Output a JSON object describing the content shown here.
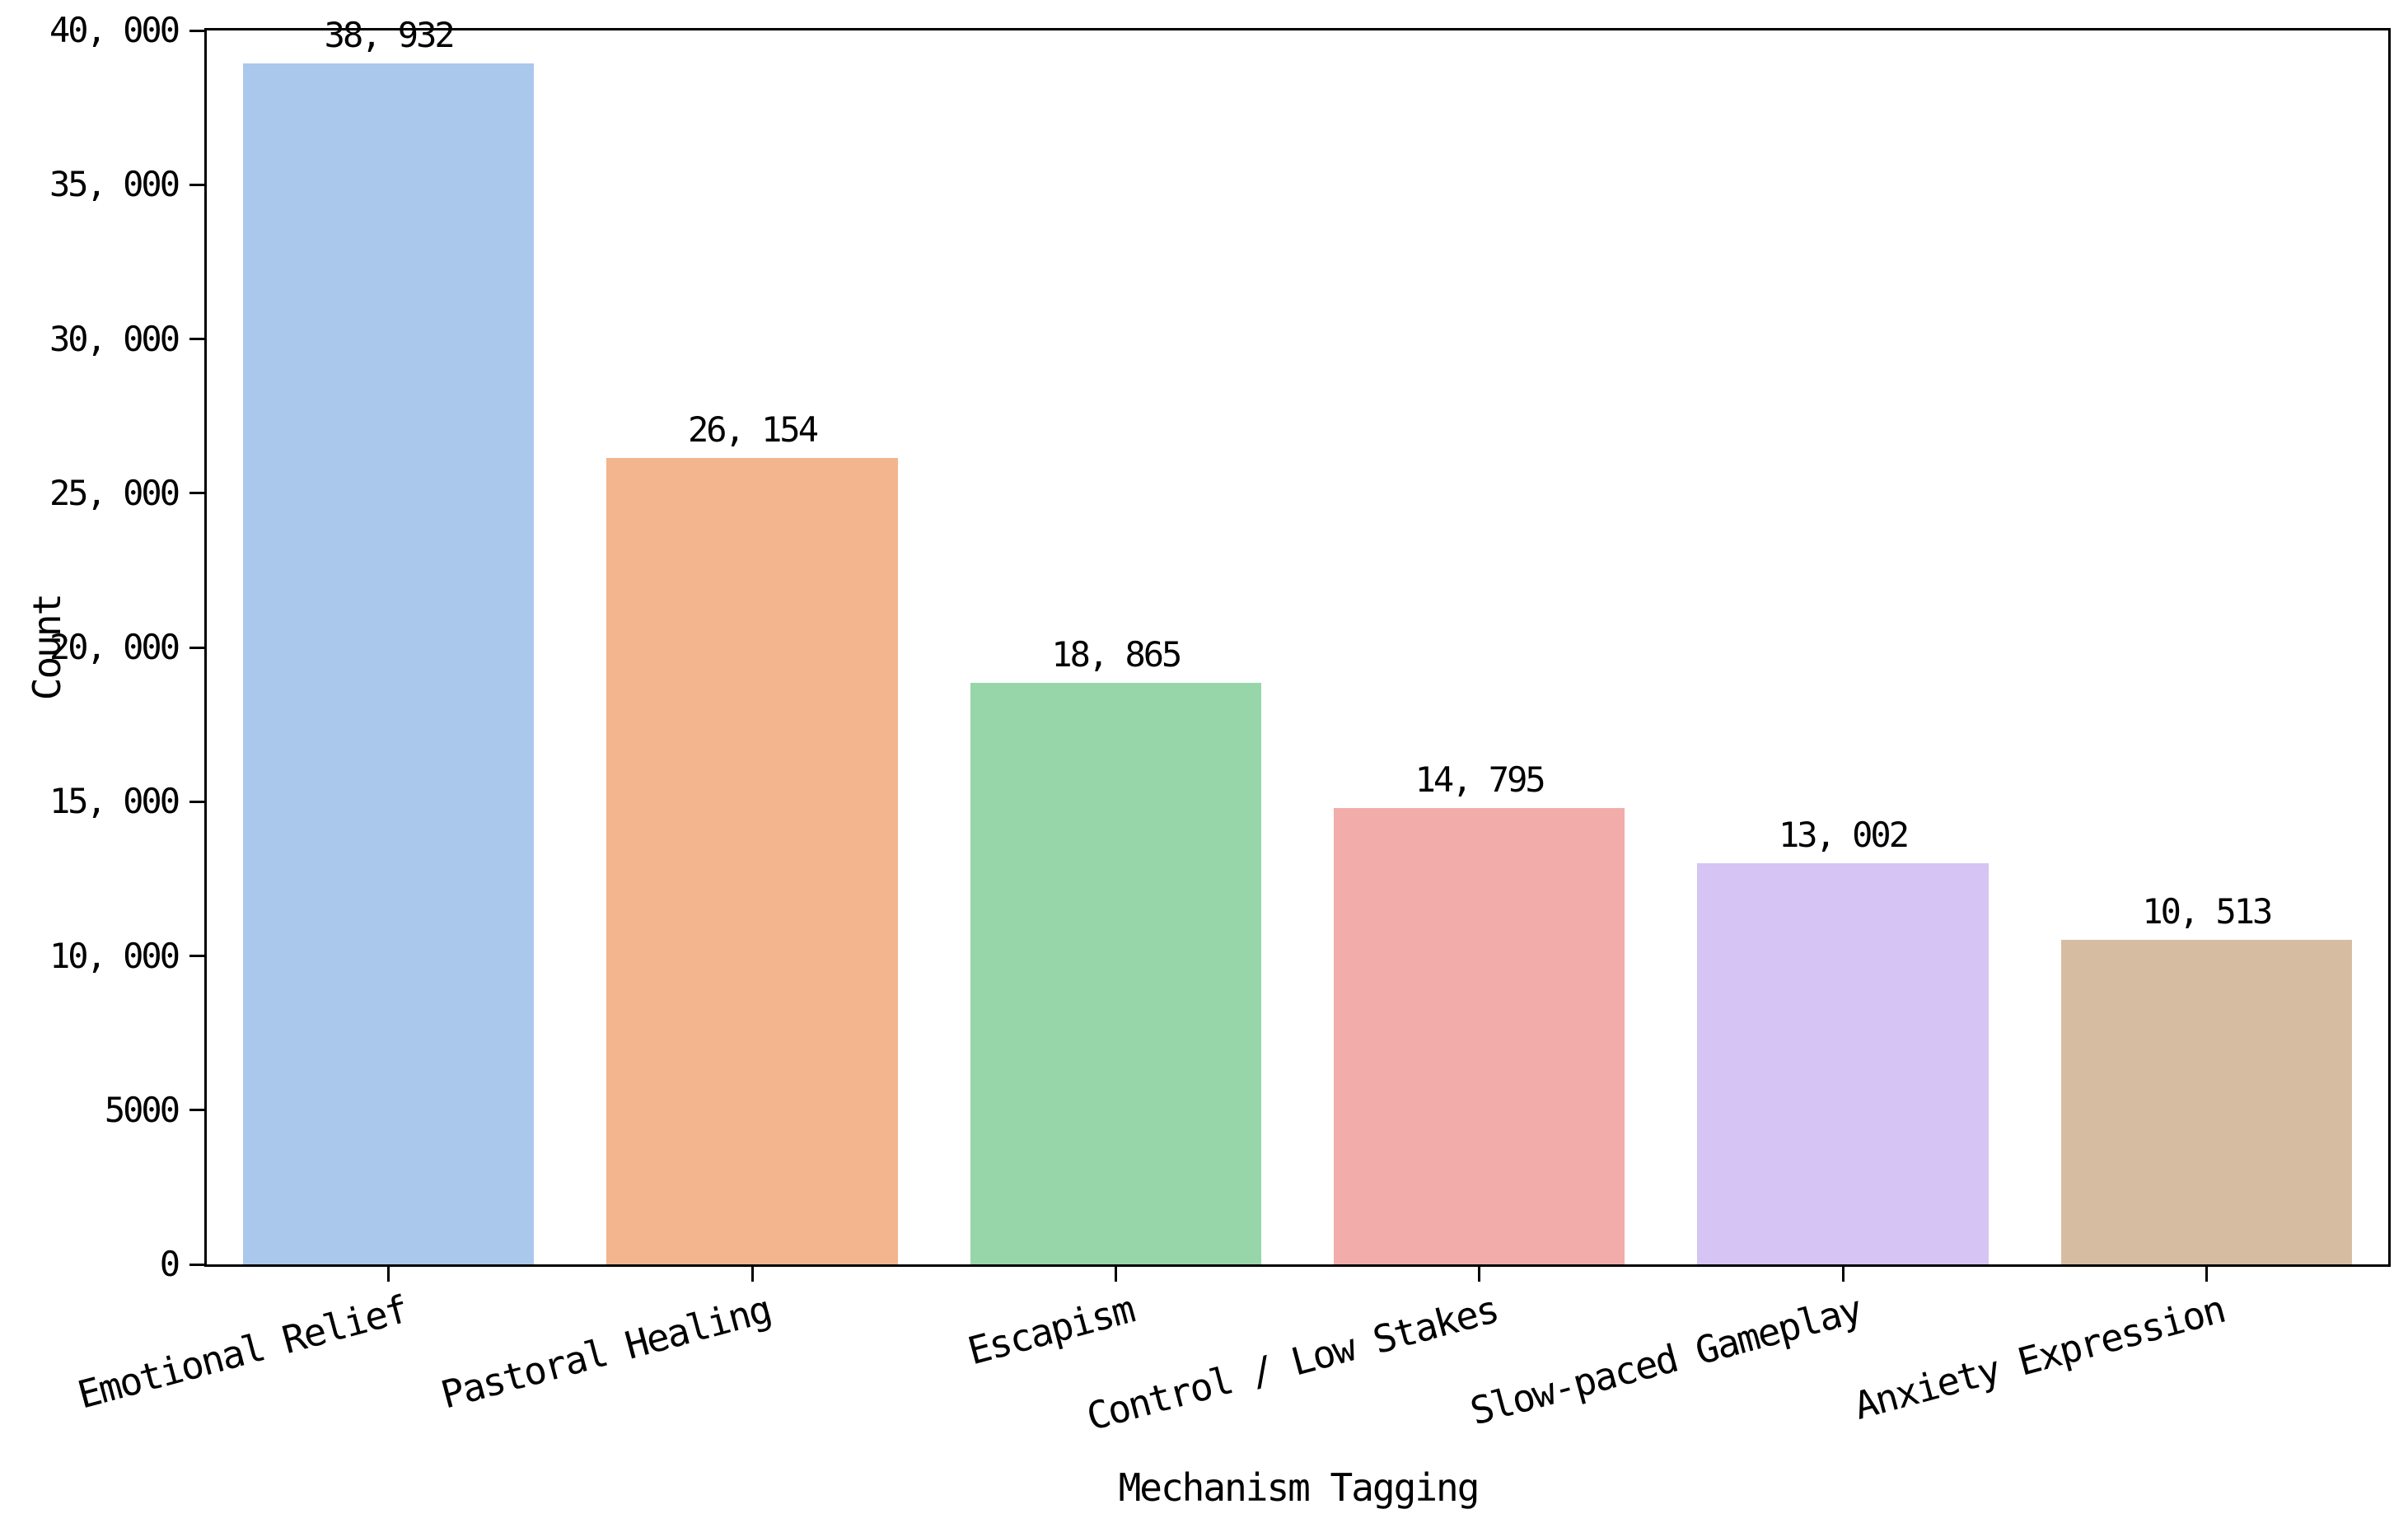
{
  "figure": {
    "background_color": "#ffffff",
    "axis_color": "#000000",
    "text_color": "#000000"
  },
  "chart_data": {
    "type": "bar",
    "title": "",
    "xlabel": "Mechanism Tagging",
    "ylabel": "Count",
    "categories": [
      "Emotional Relief",
      "Pastoral Healing",
      "Escapism",
      "Control / Low Stakes",
      "Slow-paced Gameplay",
      "Anxiety Expression"
    ],
    "values": [
      38932,
      26154,
      18865,
      14795,
      13002,
      10513
    ],
    "value_labels": [
      "38, 932",
      "26, 154",
      "18, 865",
      "14, 795",
      "13, 002",
      "10, 513"
    ],
    "bar_colors": [
      "#aac8ec",
      "#f2b58e",
      "#97d6a8",
      "#f2acaa",
      "#d5c4f4",
      "#d6bda2"
    ],
    "ylim": [
      0,
      40000
    ],
    "yticks": [
      {
        "value": 0,
        "label": "0"
      },
      {
        "value": 5000,
        "label": "5000"
      },
      {
        "value": 10000,
        "label": "10, 000"
      },
      {
        "value": 15000,
        "label": "15, 000"
      },
      {
        "value": 20000,
        "label": "20, 000"
      },
      {
        "value": 25000,
        "label": "25, 000"
      },
      {
        "value": 30000,
        "label": "30, 000"
      },
      {
        "value": 35000,
        "label": "35, 000"
      },
      {
        "value": 40000,
        "label": "40, 000"
      }
    ],
    "bar_width_fraction": 0.8,
    "x_tick_label_rotation_deg": 15,
    "grid": false,
    "legend": "none"
  }
}
